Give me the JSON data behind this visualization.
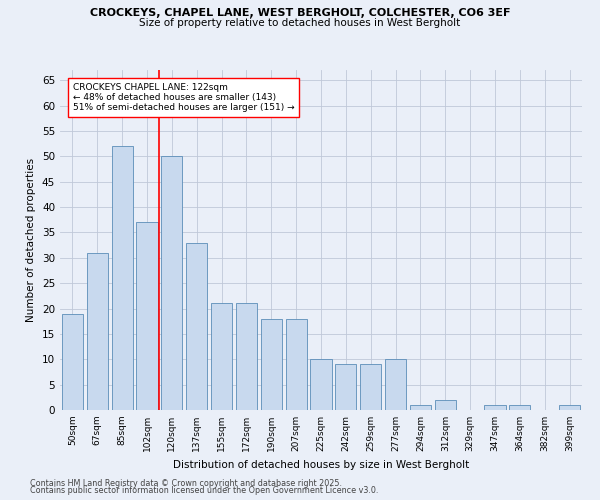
{
  "title1": "CROCKEYS, CHAPEL LANE, WEST BERGHOLT, COLCHESTER, CO6 3EF",
  "title2": "Size of property relative to detached houses in West Bergholt",
  "xlabel": "Distribution of detached houses by size in West Bergholt",
  "ylabel": "Number of detached properties",
  "categories": [
    "50sqm",
    "67sqm",
    "85sqm",
    "102sqm",
    "120sqm",
    "137sqm",
    "155sqm",
    "172sqm",
    "190sqm",
    "207sqm",
    "225sqm",
    "242sqm",
    "259sqm",
    "277sqm",
    "294sqm",
    "312sqm",
    "329sqm",
    "347sqm",
    "364sqm",
    "382sqm",
    "399sqm"
  ],
  "values": [
    19,
    31,
    52,
    37,
    50,
    33,
    21,
    21,
    18,
    18,
    10,
    9,
    9,
    10,
    1,
    2,
    0,
    1,
    1,
    0,
    1
  ],
  "bar_color": "#c8d9ee",
  "bar_edge_color": "#5b8db8",
  "ylim": [
    0,
    67
  ],
  "yticks": [
    0,
    5,
    10,
    15,
    20,
    25,
    30,
    35,
    40,
    45,
    50,
    55,
    60,
    65
  ],
  "vline_x": 3.5,
  "vline_color": "red",
  "annotation_title": "CROCKEYS CHAPEL LANE: 122sqm",
  "annotation_line1": "← 48% of detached houses are smaller (143)",
  "annotation_line2": "51% of semi-detached houses are larger (151) →",
  "annotation_box_color": "white",
  "annotation_box_edge": "red",
  "background_color": "#eaeff8",
  "footer1": "Contains HM Land Registry data © Crown copyright and database right 2025.",
  "footer2": "Contains public sector information licensed under the Open Government Licence v3.0.",
  "grid_color": "#c0c8d8"
}
